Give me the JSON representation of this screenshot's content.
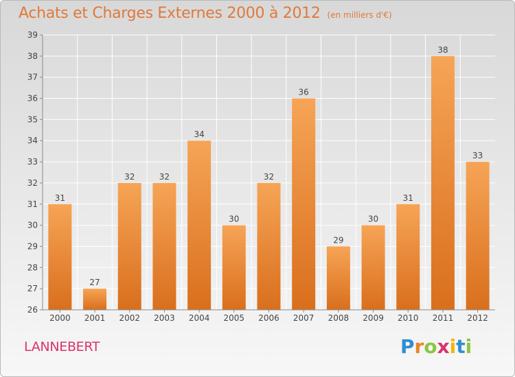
{
  "title": "Achats et Charges Externes 2000 à 2012",
  "subtitle": "(en milliers d'€)",
  "location": "LANNEBERT",
  "brand": {
    "letters": [
      "P",
      "r",
      "o",
      "x",
      "i",
      "t",
      "i"
    ],
    "colors": [
      "#2f8fd1",
      "#e8862a",
      "#8cc63f",
      "#d8336c",
      "#f2b600",
      "#2f8fd1",
      "#8cc63f"
    ]
  },
  "colors": {
    "bar_light": "#f6a456",
    "bar_dark": "#d96f1d",
    "title": "#e0793a",
    "location": "#d8336c"
  },
  "chart_data": {
    "type": "bar",
    "categories": [
      "2000",
      "2001",
      "2002",
      "2003",
      "2004",
      "2005",
      "2006",
      "2007",
      "2008",
      "2009",
      "2010",
      "2011",
      "2012"
    ],
    "values": [
      31,
      27,
      32,
      32,
      34,
      30,
      32,
      36,
      29,
      30,
      31,
      38,
      33
    ],
    "ylim": [
      26,
      39
    ],
    "yticks": [
      26,
      27,
      28,
      29,
      30,
      31,
      32,
      33,
      34,
      35,
      36,
      37,
      38,
      39
    ],
    "grid": true,
    "data_labels": true
  }
}
